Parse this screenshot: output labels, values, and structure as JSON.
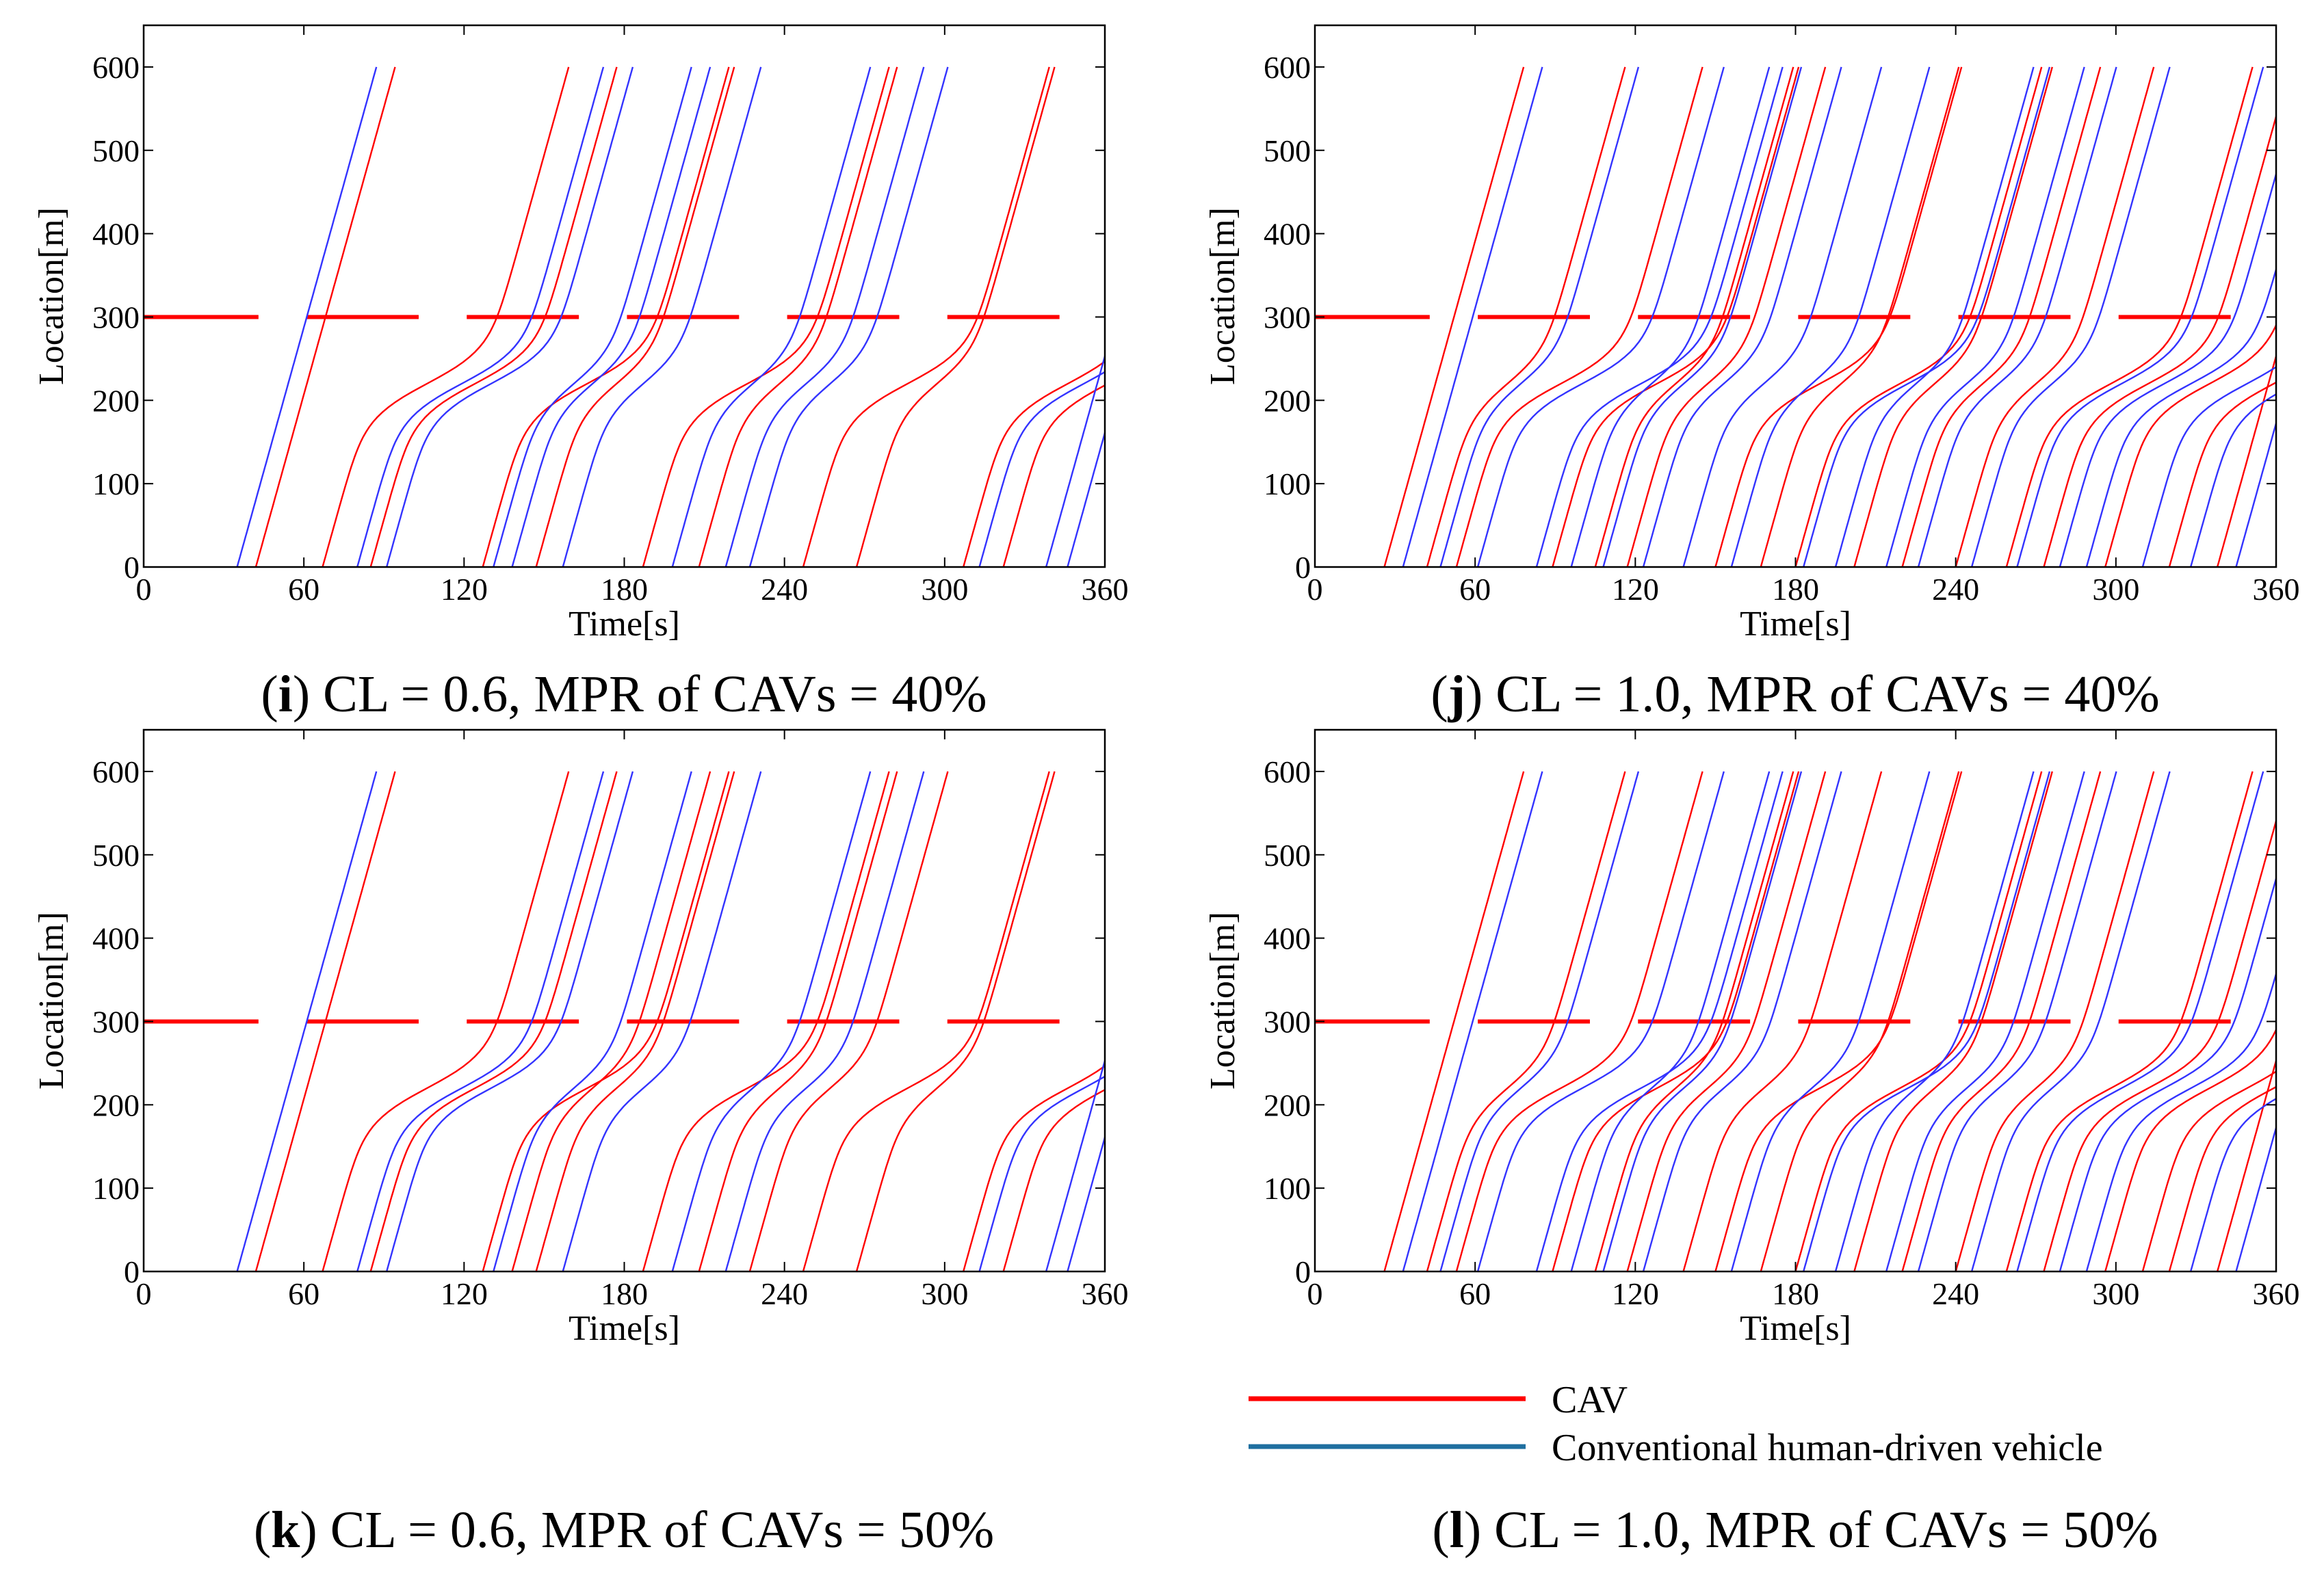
{
  "figure": {
    "panels": [
      {
        "id": "i",
        "letter": "i",
        "caption": " CL = 0.6, MPR of CAVs = 40%"
      },
      {
        "id": "j",
        "letter": "j",
        "caption": " CL = 1.0, MPR of CAVs = 40%"
      },
      {
        "id": "k",
        "letter": "k",
        "caption": " CL = 0.6, MPR of CAVs = 50%"
      },
      {
        "id": "l",
        "letter": "l",
        "caption": " CL = 1.0, MPR of CAVs = 50%"
      }
    ],
    "legend": [
      {
        "label": "CAV",
        "color": "#ff0000"
      },
      {
        "label": "Conventional human-driven vehicle",
        "color": "#1f6fa0"
      }
    ],
    "colors": {
      "cav": "#ff0000",
      "hdv": "#3333ff",
      "signal": "#ff0000",
      "axis": "#000000"
    }
  },
  "chart_data": [
    {
      "id": "i",
      "type": "line",
      "title": "(i) CL = 0.6, MPR of CAVs = 40%",
      "xlabel": "Time[s]",
      "ylabel": "Location[m]",
      "xlim": [
        0,
        360
      ],
      "ylim": [
        0,
        650
      ],
      "xticks": [
        0,
        60,
        120,
        180,
        240,
        300,
        360
      ],
      "yticks": [
        0,
        100,
        200,
        300,
        400,
        500,
        600
      ],
      "signal": {
        "location": 300,
        "red_intervals": [
          [
            0,
            43
          ],
          [
            61,
            103
          ],
          [
            121,
            163
          ],
          [
            181,
            223
          ],
          [
            241,
            283
          ],
          [
            301,
            343
          ]
        ]
      },
      "series": [
        {
          "name": "CAV",
          "trajectories": [
            {
              "t0": 42,
              "d": 0
            },
            {
              "t0": 67,
              "d": 2
            },
            {
              "t0": 85,
              "d": 2
            },
            {
              "t0": 127,
              "d": 2
            },
            {
              "t0": 147,
              "d": 1
            },
            {
              "t0": 187,
              "d": 2
            },
            {
              "t0": 208,
              "d": 1
            },
            {
              "t0": 247,
              "d": 2
            },
            {
              "t0": 267,
              "d": 1
            },
            {
              "t0": 307,
              "d": 2
            },
            {
              "t0": 322,
              "d": 2
            }
          ]
        },
        {
          "name": "Conventional human-driven vehicle",
          "trajectories": [
            {
              "t0": 35,
              "d": 0
            },
            {
              "t0": 80,
              "d": 2
            },
            {
              "t0": 91,
              "d": 2
            },
            {
              "t0": 131,
              "d": 1
            },
            {
              "t0": 138,
              "d": 1
            },
            {
              "t0": 157,
              "d": 1
            },
            {
              "t0": 198,
              "d": 1
            },
            {
              "t0": 218,
              "d": 1
            },
            {
              "t0": 227,
              "d": 1
            },
            {
              "t0": 313,
              "d": 2
            },
            {
              "t0": 338,
              "d": 0
            },
            {
              "t0": 346,
              "d": 0
            }
          ]
        }
      ]
    },
    {
      "id": "j",
      "type": "line",
      "title": "(j) CL = 1.0, MPR of CAVs = 40%",
      "xlabel": "Time[s]",
      "ylabel": "Location[m]",
      "xlim": [
        0,
        360
      ],
      "ylim": [
        0,
        650
      ],
      "xticks": [
        0,
        60,
        120,
        180,
        240,
        300,
        360
      ],
      "yticks": [
        0,
        100,
        200,
        300,
        400,
        500,
        600
      ],
      "signal": {
        "location": 300,
        "red_intervals": [
          [
            0,
            43
          ],
          [
            61,
            103
          ],
          [
            121,
            163
          ],
          [
            181,
            223
          ],
          [
            241,
            283
          ],
          [
            301,
            343
          ]
        ]
      },
      "series": [
        {
          "name": "CAV",
          "trajectories": [
            {
              "t0": 26,
              "d": 0
            },
            {
              "t0": 42,
              "d": 1
            },
            {
              "t0": 53,
              "d": 2
            },
            {
              "t0": 89,
              "d": 2
            },
            {
              "t0": 105,
              "d": 1
            },
            {
              "t0": 117,
              "d": 1
            },
            {
              "t0": 150,
              "d": 2
            },
            {
              "t0": 167,
              "d": 1
            },
            {
              "t0": 180,
              "d": 2
            },
            {
              "t0": 202,
              "d": 1
            },
            {
              "t0": 220,
              "d": 1
            },
            {
              "t0": 240,
              "d": 1
            },
            {
              "t0": 259,
              "d": 2
            },
            {
              "t0": 273,
              "d": 2
            },
            {
              "t0": 296,
              "d": 2
            },
            {
              "t0": 320,
              "d": 2
            },
            {
              "t0": 338,
              "d": 0
            }
          ]
        },
        {
          "name": "Conventional human-driven vehicle",
          "trajectories": [
            {
              "t0": 33,
              "d": 0
            },
            {
              "t0": 47,
              "d": 1
            },
            {
              "t0": 61,
              "d": 2
            },
            {
              "t0": 83,
              "d": 2
            },
            {
              "t0": 96,
              "d": 1
            },
            {
              "t0": 108,
              "d": 1
            },
            {
              "t0": 123,
              "d": 1
            },
            {
              "t0": 138,
              "d": 1
            },
            {
              "t0": 156,
              "d": 1
            },
            {
              "t0": 183,
              "d": 2
            },
            {
              "t0": 195,
              "d": 1
            },
            {
              "t0": 214,
              "d": 1
            },
            {
              "t0": 226,
              "d": 1
            },
            {
              "t0": 246,
              "d": 1
            },
            {
              "t0": 263,
              "d": 2
            },
            {
              "t0": 279,
              "d": 2
            },
            {
              "t0": 289,
              "d": 2
            },
            {
              "t0": 310,
              "d": 2
            },
            {
              "t0": 328,
              "d": 2
            },
            {
              "t0": 345,
              "d": 0
            }
          ]
        }
      ]
    },
    {
      "id": "k",
      "type": "line",
      "title": "(k) CL = 0.6, MPR of CAVs = 50%",
      "xlabel": "Time[s]",
      "ylabel": "Location[m]",
      "xlim": [
        0,
        360
      ],
      "ylim": [
        0,
        650
      ],
      "xticks": [
        0,
        60,
        120,
        180,
        240,
        300,
        360
      ],
      "yticks": [
        0,
        100,
        200,
        300,
        400,
        500,
        600
      ],
      "signal": {
        "location": 300,
        "red_intervals": [
          [
            0,
            43
          ],
          [
            61,
            103
          ],
          [
            121,
            163
          ],
          [
            181,
            223
          ],
          [
            241,
            283
          ],
          [
            301,
            343
          ]
        ]
      },
      "series": [
        {
          "name": "CAV",
          "trajectories": [
            {
              "t0": 42,
              "d": 0
            },
            {
              "t0": 67,
              "d": 2
            },
            {
              "t0": 85,
              "d": 2
            },
            {
              "t0": 127,
              "d": 2
            },
            {
              "t0": 138,
              "d": 1
            },
            {
              "t0": 147,
              "d": 1
            },
            {
              "t0": 187,
              "d": 2
            },
            {
              "t0": 208,
              "d": 1
            },
            {
              "t0": 227,
              "d": 1
            },
            {
              "t0": 247,
              "d": 2
            },
            {
              "t0": 267,
              "d": 1
            },
            {
              "t0": 307,
              "d": 2
            },
            {
              "t0": 322,
              "d": 2
            }
          ]
        },
        {
          "name": "Conventional human-driven vehicle",
          "trajectories": [
            {
              "t0": 35,
              "d": 0
            },
            {
              "t0": 80,
              "d": 2
            },
            {
              "t0": 91,
              "d": 2
            },
            {
              "t0": 131,
              "d": 1
            },
            {
              "t0": 157,
              "d": 1
            },
            {
              "t0": 198,
              "d": 1
            },
            {
              "t0": 218,
              "d": 1
            },
            {
              "t0": 313,
              "d": 2
            },
            {
              "t0": 338,
              "d": 0
            },
            {
              "t0": 346,
              "d": 0
            }
          ]
        }
      ]
    },
    {
      "id": "l",
      "type": "line",
      "title": "(l) CL = 1.0, MPR of CAVs = 50%",
      "xlabel": "Time[s]",
      "ylabel": "Location[m]",
      "xlim": [
        0,
        360
      ],
      "ylim": [
        0,
        650
      ],
      "xticks": [
        0,
        60,
        120,
        180,
        240,
        300,
        360
      ],
      "yticks": [
        0,
        100,
        200,
        300,
        400,
        500,
        600
      ],
      "signal": {
        "location": 300,
        "red_intervals": [
          [
            0,
            43
          ],
          [
            61,
            103
          ],
          [
            121,
            163
          ],
          [
            181,
            223
          ],
          [
            241,
            283
          ],
          [
            301,
            343
          ]
        ]
      },
      "series": [
        {
          "name": "CAV",
          "trajectories": [
            {
              "t0": 26,
              "d": 0
            },
            {
              "t0": 42,
              "d": 1
            },
            {
              "t0": 53,
              "d": 2
            },
            {
              "t0": 89,
              "d": 2
            },
            {
              "t0": 105,
              "d": 1
            },
            {
              "t0": 117,
              "d": 1
            },
            {
              "t0": 138,
              "d": 1
            },
            {
              "t0": 150,
              "d": 2
            },
            {
              "t0": 167,
              "d": 1
            },
            {
              "t0": 180,
              "d": 2
            },
            {
              "t0": 202,
              "d": 1
            },
            {
              "t0": 220,
              "d": 1
            },
            {
              "t0": 240,
              "d": 1
            },
            {
              "t0": 259,
              "d": 2
            },
            {
              "t0": 273,
              "d": 2
            },
            {
              "t0": 296,
              "d": 2
            },
            {
              "t0": 310,
              "d": 2
            },
            {
              "t0": 320,
              "d": 2
            },
            {
              "t0": 338,
              "d": 0
            }
          ]
        },
        {
          "name": "Conventional human-driven vehicle",
          "trajectories": [
            {
              "t0": 33,
              "d": 0
            },
            {
              "t0": 47,
              "d": 1
            },
            {
              "t0": 61,
              "d": 2
            },
            {
              "t0": 83,
              "d": 2
            },
            {
              "t0": 96,
              "d": 1
            },
            {
              "t0": 108,
              "d": 1
            },
            {
              "t0": 123,
              "d": 1
            },
            {
              "t0": 156,
              "d": 1
            },
            {
              "t0": 183,
              "d": 2
            },
            {
              "t0": 195,
              "d": 1
            },
            {
              "t0": 214,
              "d": 1
            },
            {
              "t0": 226,
              "d": 1
            },
            {
              "t0": 246,
              "d": 1
            },
            {
              "t0": 263,
              "d": 2
            },
            {
              "t0": 279,
              "d": 2
            },
            {
              "t0": 289,
              "d": 2
            },
            {
              "t0": 328,
              "d": 2
            },
            {
              "t0": 345,
              "d": 0
            }
          ]
        }
      ]
    }
  ]
}
